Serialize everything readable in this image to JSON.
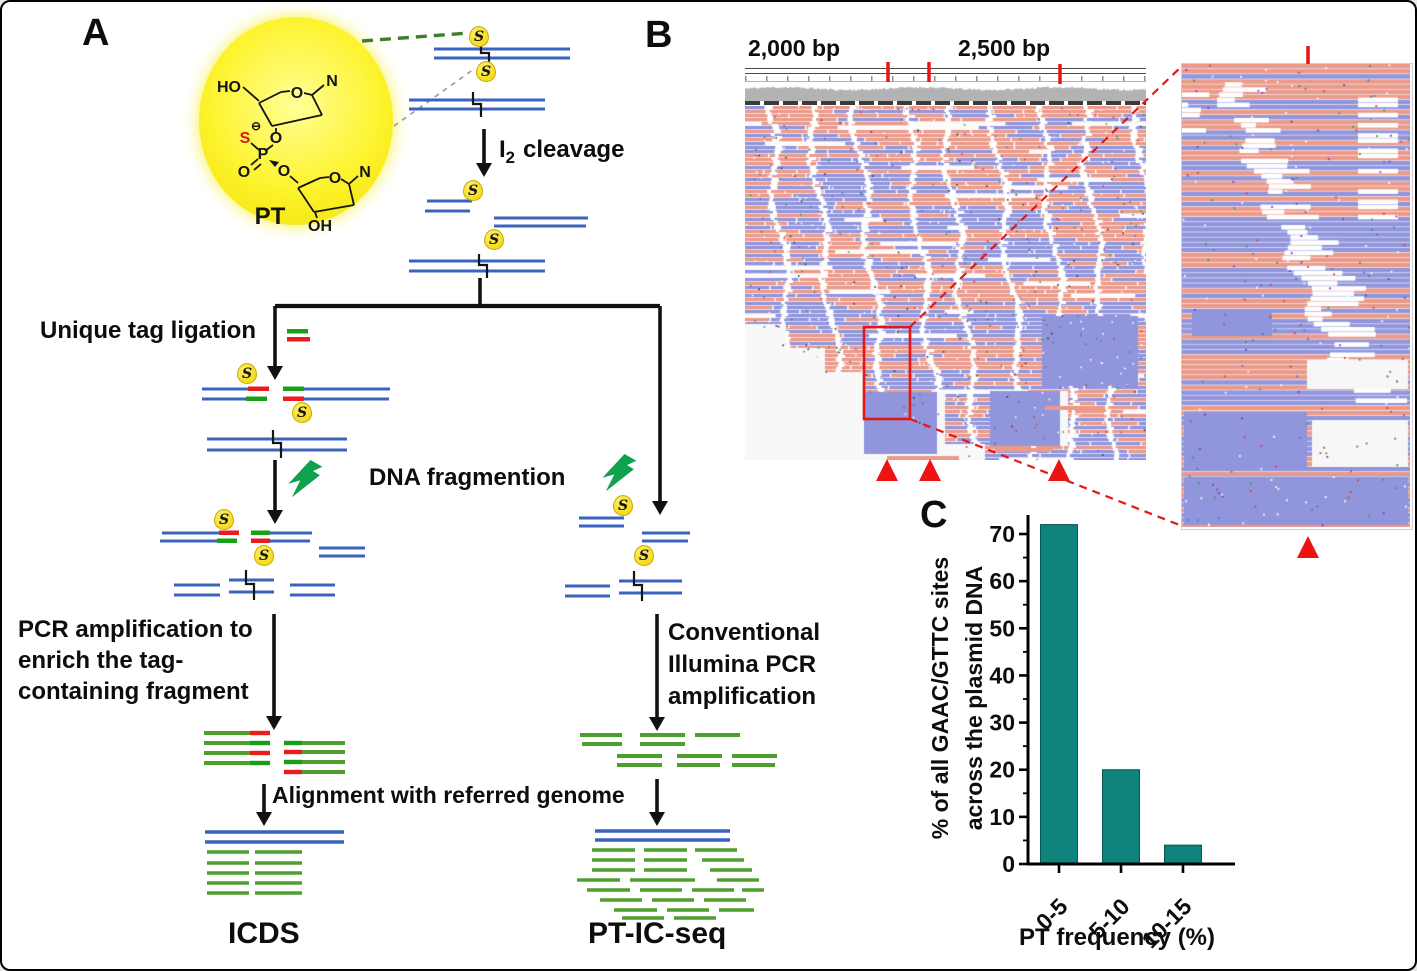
{
  "figure": {
    "panel_a": {
      "label": "A",
      "s_mark": "S",
      "chem": {
        "ho": "HO",
        "o_ring1": "O",
        "n_ring1": "N",
        "s": "S",
        "minus_charge": "⊖",
        "o_link": "O",
        "p": "P",
        "o_double": "O",
        "o_ester": "O",
        "o_ring2": "O",
        "n_ring2": "N",
        "oh": "OH",
        "pt": "PT"
      },
      "steps": {
        "i2_prefix": "I",
        "i2_sub": "2",
        "i2_suffix": "cleavage",
        "unique_tag": "Unique tag ligation",
        "fragmentation": "DNA fragmention",
        "pcr_line1": "PCR amplification to",
        "pcr_line2": "enrich the tag-",
        "pcr_line3": "containing fragment",
        "conv_line1": "Conventional",
        "conv_line2": "Illumina PCR",
        "conv_line3": "amplification",
        "alignment": "Alignment with referred genome"
      },
      "outputs": {
        "left": "ICDS",
        "right": "PT-IC-seq"
      }
    },
    "panel_b": {
      "label": "B",
      "ruler": {
        "left_label": "2,000 bp",
        "right_label": "2,500 bp"
      },
      "pt_site_marker_count": 3,
      "colors": {
        "read_salmon": "#eb9a8a",
        "read_periwinkle": "#9196dc",
        "coverage_gray": "#b3b3b3",
        "marker_red": "#e81414"
      }
    },
    "panel_c": {
      "label": "C"
    }
  },
  "chart_data": {
    "type": "bar",
    "categories": [
      "0-5",
      "5-10",
      "10-15"
    ],
    "values": [
      72,
      20,
      4
    ],
    "title": "",
    "xlabel": "PT frequency (%)",
    "ylabel": "% of all GAAC/GTTC sites across the plasmid DNA",
    "ylabel_lines": [
      "% of all GAAC/GTTC sites",
      "across the plasmid DNA"
    ],
    "ylim": [
      0,
      75
    ],
    "yticks": [
      0,
      10,
      20,
      30,
      40,
      50,
      60,
      70
    ],
    "grid": false,
    "legend_position": "none",
    "bar_color": "#0f847c"
  }
}
